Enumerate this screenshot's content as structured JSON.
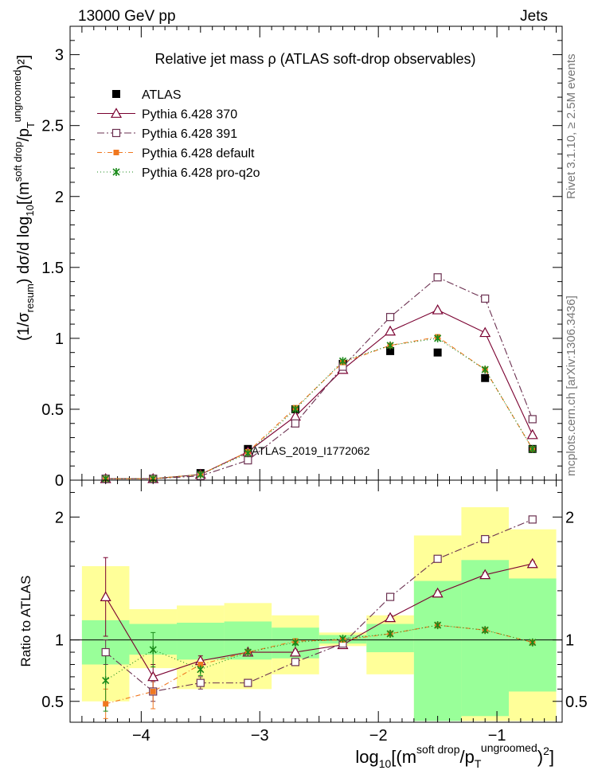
{
  "header": {
    "left": "13000 GeV pp",
    "right": "Jets"
  },
  "side_labels": {
    "rivet": "Rivet 3.1.10, ≥ 2.5M events",
    "mcplots": "mcplots.cern.ch [arXiv:1306.3436]"
  },
  "analysis_id": "ATLAS_2019_I1772062",
  "chart_data": [
    {
      "type": "scatter",
      "title": "Relative jet mass  ρ (ATLAS soft-drop observables)",
      "ylabel": {
        "prefix": "(1/σ",
        "sub1": "resum",
        "mid": ") dσ/d log",
        "sub2": "10",
        "post": "[(m",
        "sup1": "soft drop",
        "slash": "/p",
        "sub3": "T",
        "sup2": "ungroomed",
        "pow": "2",
        "end": ")²]"
      },
      "xlim": [
        -4.6,
        -0.45
      ],
      "ylim": [
        0,
        3.2
      ],
      "yticks": [
        0,
        0.5,
        1,
        1.5,
        2,
        2.5,
        3
      ],
      "ytick_labels": [
        "0",
        "0.5",
        "1",
        "1.5",
        "2",
        "2.5",
        "3"
      ],
      "legend_position": "top-left",
      "x": [
        -4.3,
        -3.9,
        -3.5,
        -3.1,
        -2.7,
        -2.3,
        -1.9,
        -1.5,
        -1.1,
        -0.7
      ],
      "series": [
        {
          "name": "ATLAS",
          "color": "#000000",
          "marker": "filled-square",
          "values": [
            0.01,
            0.01,
            0.05,
            0.22,
            0.5,
            0.82,
            0.91,
            0.9,
            0.72,
            0.22
          ]
        },
        {
          "name": "Pythia 6.428 370",
          "color": "#7a0030",
          "marker": "open-triangle",
          "dash": "",
          "values": [
            0.01,
            0.01,
            0.04,
            0.2,
            0.45,
            0.78,
            1.05,
            1.2,
            1.04,
            0.32
          ]
        },
        {
          "name": "Pythia 6.428 391",
          "color": "#6b3050",
          "marker": "open-square",
          "dash": "9 3 2 3",
          "values": [
            0.01,
            0.01,
            0.03,
            0.14,
            0.4,
            0.8,
            1.15,
            1.43,
            1.28,
            0.43
          ]
        },
        {
          "name": "Pythia 6.428 default",
          "color": "#f07820",
          "marker": "filled-square-small",
          "dash": "6 3 1 3",
          "values": [
            0.01,
            0.01,
            0.04,
            0.2,
            0.51,
            0.83,
            0.95,
            1.01,
            0.78,
            0.22
          ]
        },
        {
          "name": "Pythia 6.428 pro-q2o",
          "color": "#1a8a1a",
          "marker": "star",
          "dash": "1 3",
          "values": [
            0.01,
            0.01,
            0.04,
            0.19,
            0.5,
            0.84,
            0.95,
            1.0,
            0.78,
            0.22
          ]
        }
      ]
    },
    {
      "type": "scatter",
      "ylabel": "Ratio to ATLAS",
      "xlabel": {
        "pre": "log",
        "sub": "10",
        "post": "[(m",
        "sup1": "soft drop",
        "slash": "/p",
        "sub2": "T",
        "sup2": "ungroomed",
        "end": ")",
        "pow": "2",
        "close": "]"
      },
      "xlim": [
        -4.6,
        -0.45
      ],
      "ylim": [
        0.33,
        2.3
      ],
      "xticks": [
        -4,
        -3,
        -2,
        -1
      ],
      "xtick_labels": [
        "−4",
        "−3",
        "−2",
        "−1"
      ],
      "yticks": [
        0.5,
        1,
        2
      ],
      "ytick_labels": [
        "0.5",
        "1",
        "2"
      ],
      "bins": [
        {
          "lo": -4.5,
          "hi": -4.1,
          "g1": 0.8,
          "g2": 1.16,
          "y1": 0.5,
          "y2": 1.6
        },
        {
          "lo": -4.1,
          "hi": -3.7,
          "g1": 0.88,
          "g2": 1.13,
          "y1": 0.77,
          "y2": 1.25
        },
        {
          "lo": -3.7,
          "hi": -3.3,
          "g1": 0.84,
          "g2": 1.14,
          "y1": 0.6,
          "y2": 1.28
        },
        {
          "lo": -3.3,
          "hi": -2.9,
          "g1": 0.84,
          "g2": 1.15,
          "y1": 0.6,
          "y2": 1.3
        },
        {
          "lo": -2.9,
          "hi": -2.5,
          "g1": 0.85,
          "g2": 1.1,
          "y1": 0.72,
          "y2": 1.2
        },
        {
          "lo": -2.5,
          "hi": -2.1,
          "g1": 0.97,
          "g2": 1.04,
          "y1": 0.95,
          "y2": 1.06
        },
        {
          "lo": -2.1,
          "hi": -1.7,
          "g1": 0.9,
          "g2": 1.13,
          "y1": 0.72,
          "y2": 1.2
        },
        {
          "lo": -1.7,
          "hi": -1.3,
          "g1": 0.34,
          "g2": 1.48,
          "y1": 0.34,
          "y2": 1.85
        },
        {
          "lo": -1.3,
          "hi": -0.9,
          "g1": 0.38,
          "g2": 1.65,
          "y1": 0.34,
          "y2": 2.08
        },
        {
          "lo": -0.9,
          "hi": -0.5,
          "g1": 0.58,
          "g2": 1.5,
          "y1": 0.34,
          "y2": 1.9
        }
      ],
      "series": [
        {
          "name": "Pythia 6.428 370",
          "color": "#7a0030",
          "marker": "open-triangle",
          "dash": "",
          "values": [
            1.35,
            0.7,
            0.83,
            0.9,
            0.9,
            0.96,
            1.18,
            1.38,
            1.53,
            1.62
          ],
          "err": [
            0.32,
            0.1,
            0.04,
            0.02,
            0.02,
            0.01,
            0.02,
            0.02,
            0.02,
            0.02
          ]
        },
        {
          "name": "Pythia 6.428 391",
          "color": "#6b3050",
          "marker": "open-square",
          "dash": "9 3 2 3",
          "values": [
            0.9,
            0.58,
            0.65,
            0.65,
            0.82,
            0.97,
            1.35,
            1.66,
            1.82,
            1.98
          ],
          "err": [
            0.1,
            0.08,
            0.05,
            0.02,
            0.02,
            0.01,
            0.02,
            0.02,
            0.02,
            0.02
          ]
        },
        {
          "name": "Pythia 6.428 default",
          "color": "#f07820",
          "marker": "filled-square-small",
          "dash": "6 3 1 3",
          "values": [
            0.48,
            0.58,
            0.8,
            0.9,
            0.99,
            1.0,
            1.05,
            1.12,
            1.08,
            0.98
          ],
          "err": [
            0.12,
            0.14,
            0.05,
            0.02,
            0.02,
            0.01,
            0.02,
            0.02,
            0.02,
            0.02
          ]
        },
        {
          "name": "Pythia 6.428 pro-q2o",
          "color": "#1a8a1a",
          "marker": "star",
          "dash": "1 3",
          "values": [
            0.67,
            0.92,
            0.76,
            0.9,
            0.98,
            1.01,
            1.05,
            1.12,
            1.08,
            0.98
          ],
          "err": [
            0.25,
            0.14,
            0.05,
            0.02,
            0.02,
            0.01,
            0.02,
            0.02,
            0.02,
            0.02
          ]
        }
      ]
    }
  ]
}
